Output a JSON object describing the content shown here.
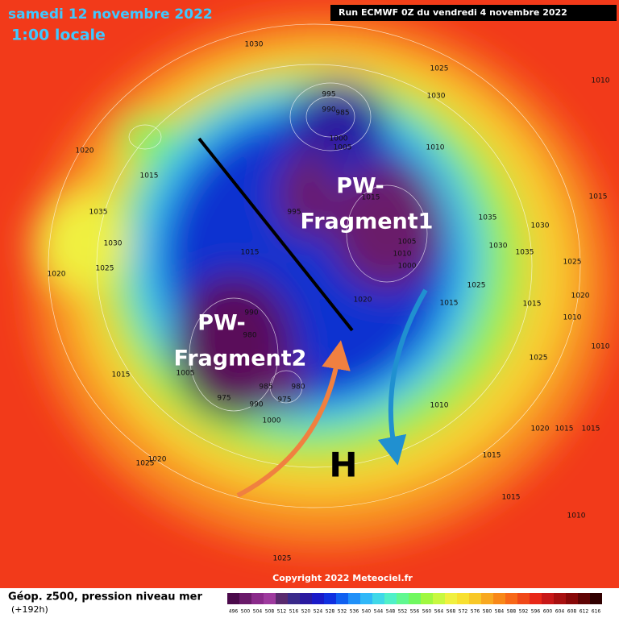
{
  "header": {
    "date": "samedi 12 novembre 2022",
    "time": "1:00 locale",
    "run": "Run ECMWF 0Z du vendredi 4 novembre 2022"
  },
  "annotations": {
    "fragment1": [
      "PW-",
      "Fragment1"
    ],
    "fragment2": [
      "PW-",
      "Fragment2"
    ],
    "high": "H"
  },
  "isobar_labels": [
    "1030",
    "1025",
    "1010",
    "995",
    "990",
    "985",
    "1000",
    "1005",
    "1010",
    "1020",
    "1015",
    "1035",
    "1030",
    "1025",
    "1020",
    "1015",
    "995",
    "990",
    "980",
    "975",
    "985",
    "975",
    "980",
    "990",
    "1000",
    "1005",
    "1015",
    "1025",
    "1020",
    "1015",
    "1010",
    "1000",
    "1005",
    "1015",
    "1020",
    "1010",
    "1015",
    "1025",
    "1030",
    "1035",
    "1015",
    "1010",
    "1025",
    "1030",
    "1015",
    "1020",
    "1025",
    "1015",
    "1010",
    "1010",
    "1015",
    "1020",
    "1030",
    "1035",
    "1025",
    "1015"
  ],
  "copyright": "Copyright 2022 Meteociel.fr",
  "footer": {
    "title": "Géop. z500, pression niveau mer",
    "lead": "(+192h)"
  },
  "colorbar": {
    "values": [
      496,
      500,
      504,
      508,
      512,
      516,
      520,
      524,
      528,
      532,
      536,
      540,
      544,
      548,
      552,
      556,
      560,
      564,
      568,
      572,
      576,
      580,
      584,
      588,
      592,
      596,
      600,
      604,
      608,
      612,
      616
    ],
    "colors": [
      "#4b0a4b",
      "#6a1a6a",
      "#8a2a8a",
      "#9e3a9e",
      "#5a2a6e",
      "#3a2a8a",
      "#2a1aa0",
      "#1a1ac8",
      "#1030e0",
      "#1060f0",
      "#2090f8",
      "#30b8f8",
      "#40d8e8",
      "#50f0c8",
      "#60f890",
      "#70f860",
      "#a0f840",
      "#c8f840",
      "#f0f040",
      "#f8e030",
      "#f8c828",
      "#f8a820",
      "#f88818",
      "#f86818",
      "#f04818",
      "#e82818",
      "#c81818",
      "#a81010",
      "#880808",
      "#600404",
      "#300000"
    ]
  }
}
